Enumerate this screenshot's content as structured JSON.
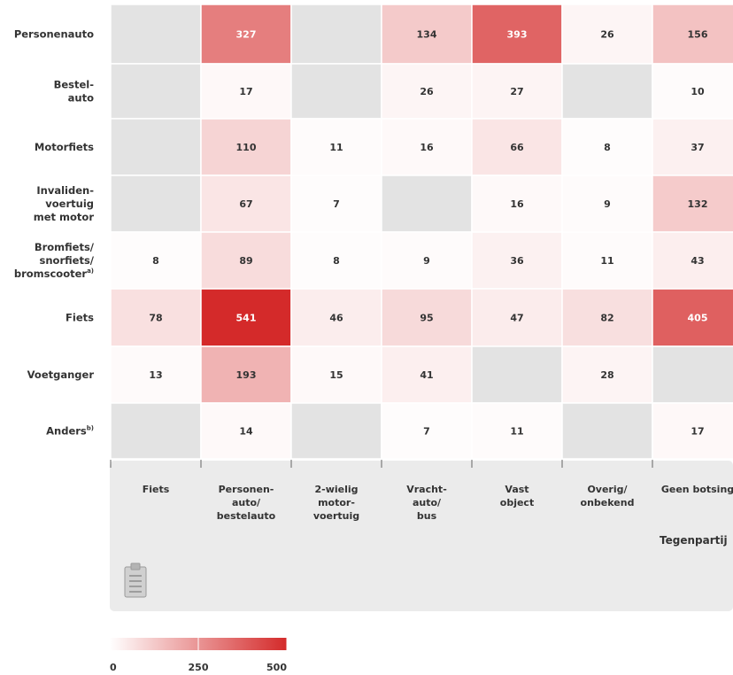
{
  "chart_data": {
    "type": "heatmap",
    "rows": [
      {
        "label": "Personenauto",
        "lines": [
          "Personenauto"
        ],
        "sup": ""
      },
      {
        "label": "Bestel-auto",
        "lines": [
          "Bestel-",
          "auto"
        ],
        "sup": ""
      },
      {
        "label": "Motorfiets",
        "lines": [
          "Motorfiets"
        ],
        "sup": ""
      },
      {
        "label": "Invaliden-voertuig met motor",
        "lines": [
          "Invaliden-",
          "voertuig",
          "met motor"
        ],
        "sup": ""
      },
      {
        "label": "Bromfiets/snorfiets/bromscooter",
        "lines": [
          "Bromfiets/",
          "snorfiets/",
          "bromscooter"
        ],
        "sup": "a)"
      },
      {
        "label": "Fiets",
        "lines": [
          "Fiets"
        ],
        "sup": ""
      },
      {
        "label": "Voetganger",
        "lines": [
          "Voetganger"
        ],
        "sup": ""
      },
      {
        "label": "Anders",
        "lines": [
          "Anders"
        ],
        "sup": "b)"
      }
    ],
    "columns": [
      {
        "label": "Fiets",
        "lines": [
          "Fiets"
        ]
      },
      {
        "label": "Personen-auto/bestelauto",
        "lines": [
          "Personen-",
          "auto/",
          "bestelauto"
        ]
      },
      {
        "label": "2-wielig motor-voertuig",
        "lines": [
          "2-wielig",
          "motor-",
          "voertuig"
        ]
      },
      {
        "label": "Vracht-auto/bus",
        "lines": [
          "Vracht-",
          "auto/",
          "bus"
        ]
      },
      {
        "label": "Vast object",
        "lines": [
          "Vast",
          "object"
        ]
      },
      {
        "label": "Overig/onbekend",
        "lines": [
          "Overig/",
          "onbekend"
        ]
      },
      {
        "label": "Geen botsing",
        "lines": [
          "Geen botsing"
        ]
      }
    ],
    "values": [
      [
        null,
        327,
        null,
        134,
        393,
        26,
        156
      ],
      [
        null,
        17,
        null,
        26,
        27,
        null,
        10
      ],
      [
        null,
        110,
        11,
        16,
        66,
        8,
        37
      ],
      [
        null,
        67,
        7,
        null,
        16,
        9,
        132
      ],
      [
        8,
        89,
        8,
        9,
        36,
        11,
        43
      ],
      [
        78,
        541,
        46,
        95,
        47,
        82,
        405
      ],
      [
        13,
        193,
        15,
        41,
        null,
        28,
        null
      ],
      [
        null,
        14,
        null,
        7,
        11,
        null,
        17
      ]
    ],
    "xlabel": "Tegenpartij",
    "color_scale": {
      "min": 0,
      "max": 541,
      "low": "#ffffff",
      "high": "#d42a2a",
      "missing": "#e3e3e3"
    },
    "legend": {
      "ticks": [
        0,
        250,
        500
      ],
      "range": [
        0,
        500
      ],
      "placement": "bottom-left"
    }
  }
}
